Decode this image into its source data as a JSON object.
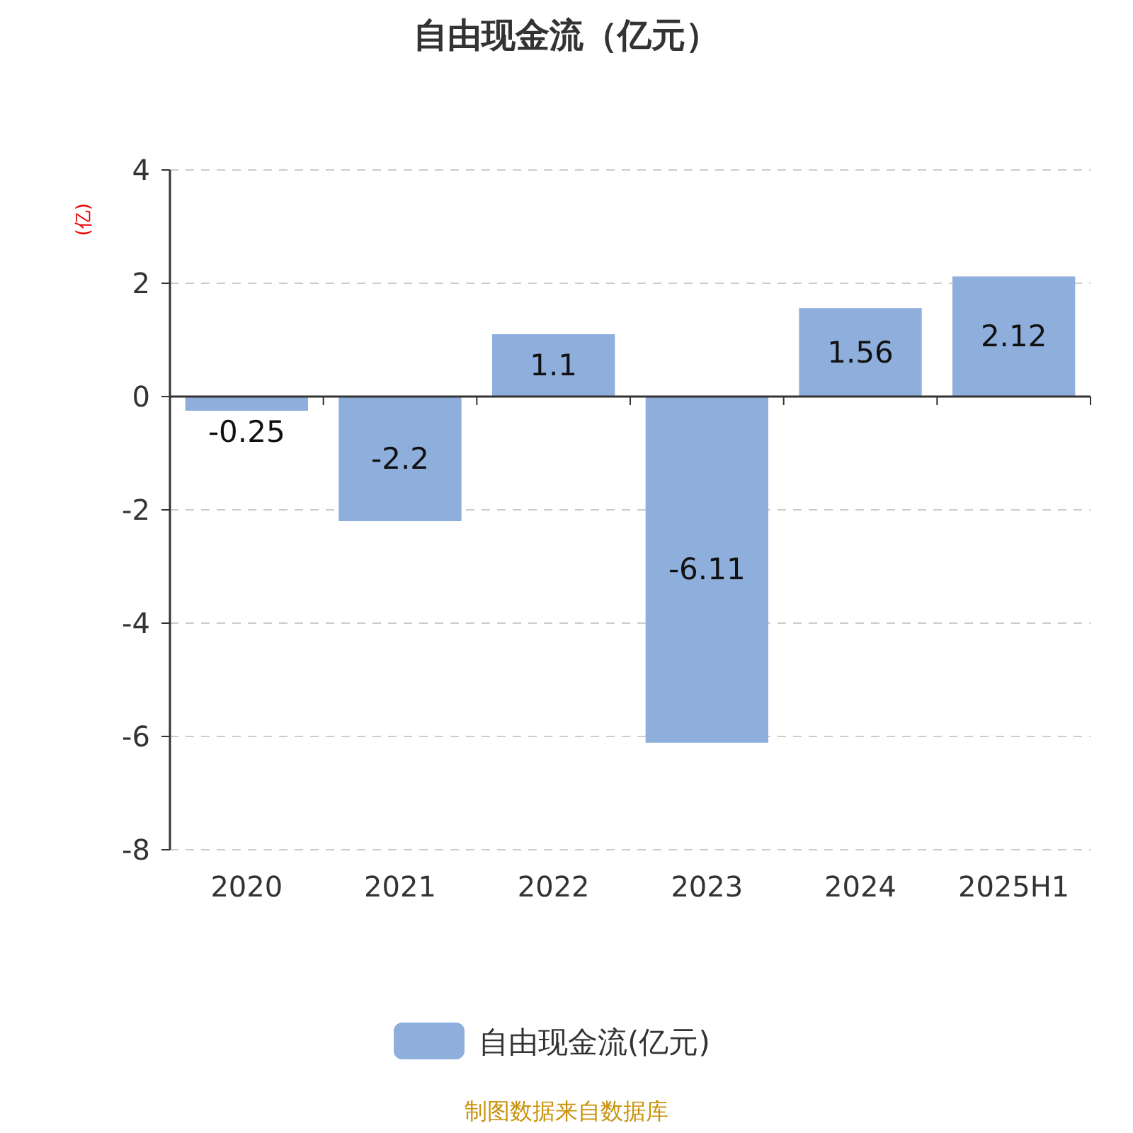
{
  "chart_data": {
    "type": "bar",
    "title": "自由现金流（亿元）",
    "ylabel": "(亿)",
    "categories": [
      "2020",
      "2021",
      "2022",
      "2023",
      "2024",
      "2025H1"
    ],
    "series": [
      {
        "name": "自由现金流(亿元)",
        "color": "#8eaedb",
        "values": [
          -0.25,
          -2.2,
          1.1,
          -6.11,
          1.56,
          2.12
        ]
      }
    ],
    "ylim": [
      -8,
      4
    ],
    "yticks": [
      -8,
      -6,
      -4,
      -2,
      0,
      2,
      4
    ],
    "grid": "y",
    "legend": "bottom",
    "data_labels": true,
    "annotations": [
      "制图数据来自数据库"
    ]
  }
}
